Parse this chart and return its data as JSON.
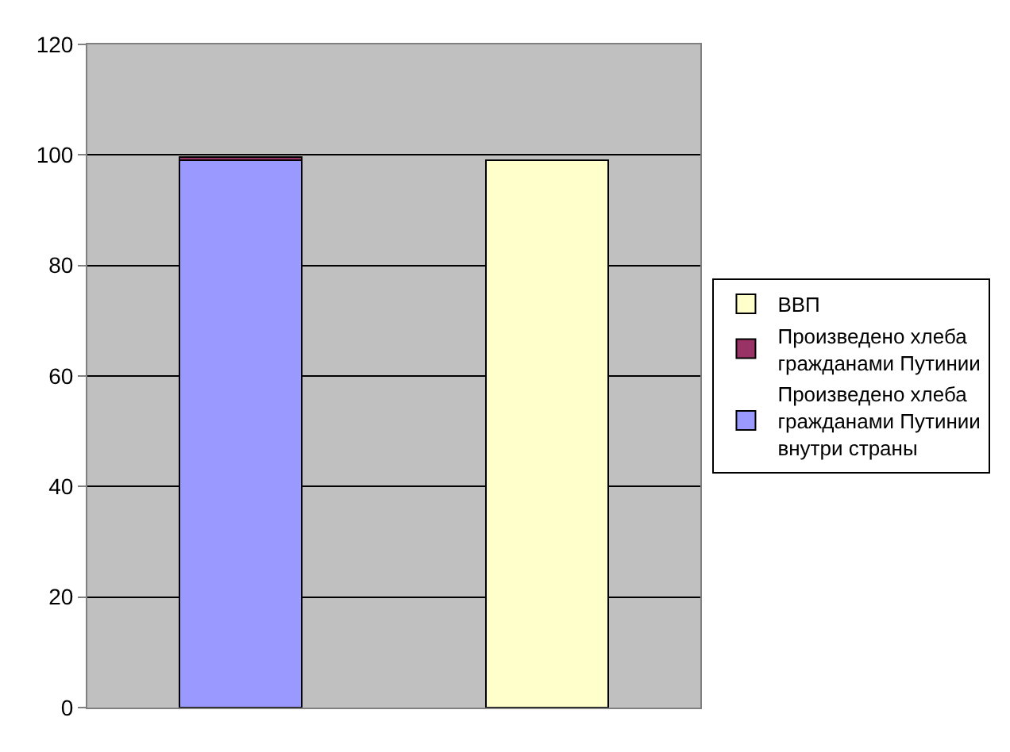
{
  "chart_data": {
    "type": "bar",
    "stacked": true,
    "categories": [
      null,
      null
    ],
    "series": [
      {
        "name": "Произведено хлеба гражданами Путинии внутри страны",
        "color": "#9999ff",
        "values": [
          99,
          null
        ]
      },
      {
        "name": "Произведено хлеба гражданами Путинии",
        "color": "#993366",
        "values": [
          0.6,
          null
        ]
      },
      {
        "name": "ВВП",
        "color": "#ffffcc",
        "values": [
          null,
          99
        ]
      }
    ],
    "ylim": [
      0,
      120
    ],
    "yticks": [
      0,
      20,
      40,
      60,
      80,
      100,
      120
    ],
    "grid": "y",
    "legend": "right"
  }
}
